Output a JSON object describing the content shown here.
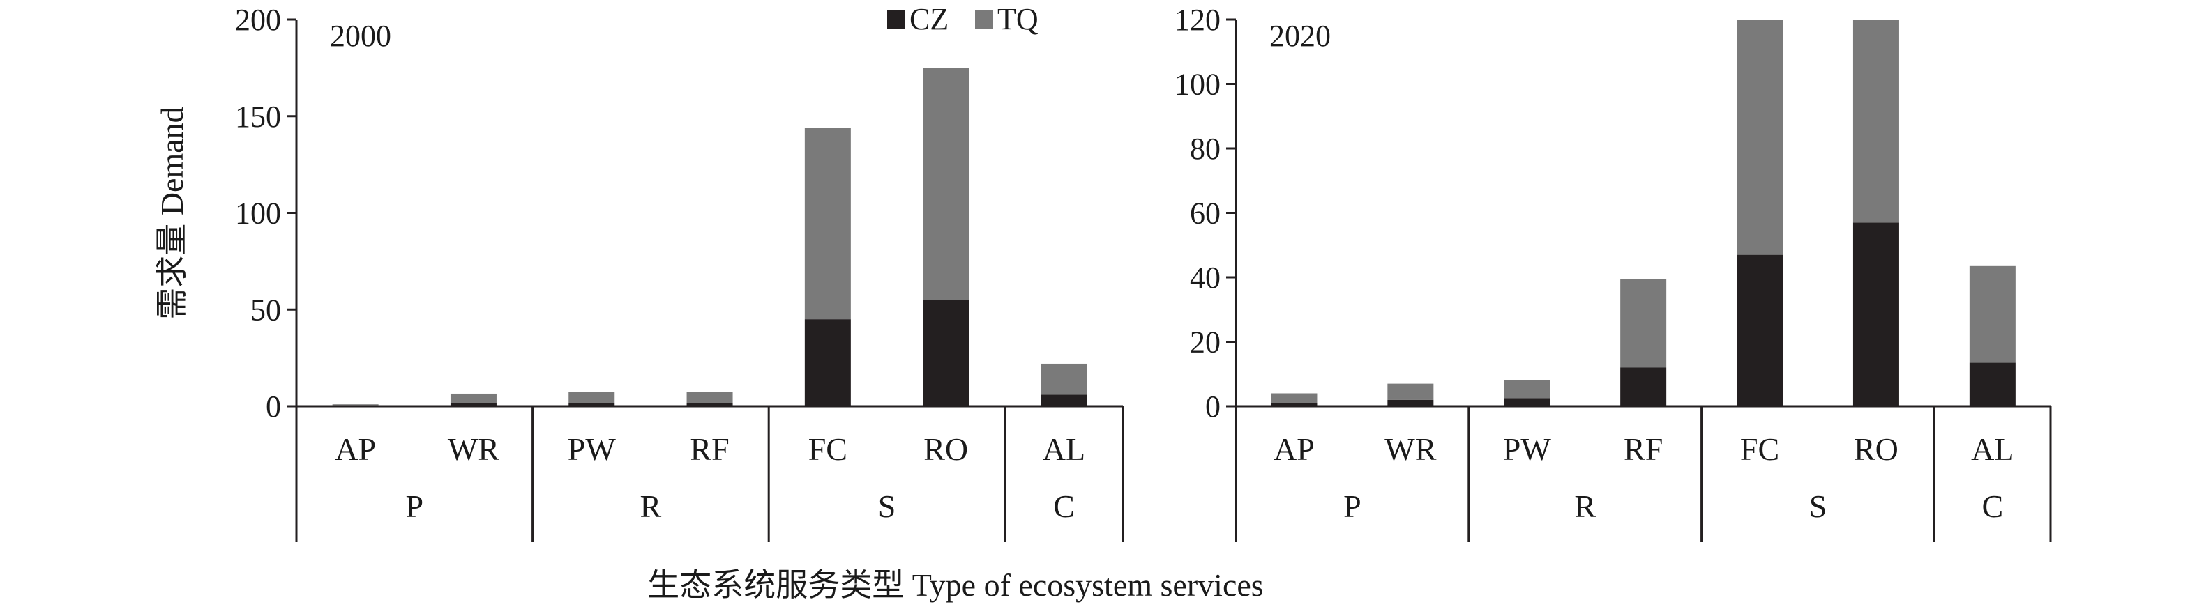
{
  "figure": {
    "ylabel": "需求量 Demand",
    "xlabel": "生态系统服务类型 Type of ecosystem services"
  },
  "legend": {
    "items": [
      {
        "label": "CZ",
        "color": "#231f20"
      },
      {
        "label": "TQ",
        "color": "#7a7a7a"
      }
    ]
  },
  "chart_data": [
    {
      "type": "bar",
      "stacked": true,
      "panel_label": "2000",
      "categories": [
        "AP",
        "WR",
        "PW",
        "RF",
        "FC",
        "RO",
        "AL"
      ],
      "groups": [
        {
          "label": "P",
          "members": [
            "AP",
            "WR"
          ]
        },
        {
          "label": "R",
          "members": [
            "PW",
            "RF"
          ]
        },
        {
          "label": "S",
          "members": [
            "FC",
            "RO"
          ]
        },
        {
          "label": "C",
          "members": [
            "AL"
          ]
        }
      ],
      "series": [
        {
          "name": "CZ",
          "values": [
            0.5,
            1.5,
            1.5,
            1.5,
            45,
            55,
            6
          ]
        },
        {
          "name": "TQ",
          "values": [
            0.5,
            5,
            6,
            6,
            99,
            120,
            16
          ]
        }
      ],
      "ylim": [
        0,
        200
      ],
      "yticks": [
        0,
        50,
        100,
        150,
        200
      ]
    },
    {
      "type": "bar",
      "stacked": true,
      "panel_label": "2020",
      "categories": [
        "AP",
        "WR",
        "PW",
        "RF",
        "FC",
        "RO",
        "AL"
      ],
      "groups": [
        {
          "label": "P",
          "members": [
            "AP",
            "WR"
          ]
        },
        {
          "label": "R",
          "members": [
            "PW",
            "RF"
          ]
        },
        {
          "label": "S",
          "members": [
            "FC",
            "RO"
          ]
        },
        {
          "label": "C",
          "members": [
            "AL"
          ]
        }
      ],
      "series": [
        {
          "name": "CZ",
          "values": [
            1,
            2,
            2.5,
            12,
            47,
            57,
            13.5
          ]
        },
        {
          "name": "TQ",
          "values": [
            3,
            5,
            5.5,
            27.5,
            73,
            63,
            30
          ]
        }
      ],
      "ylim": [
        0,
        120
      ],
      "yticks": [
        0,
        20,
        40,
        60,
        80,
        100,
        120
      ]
    }
  ]
}
